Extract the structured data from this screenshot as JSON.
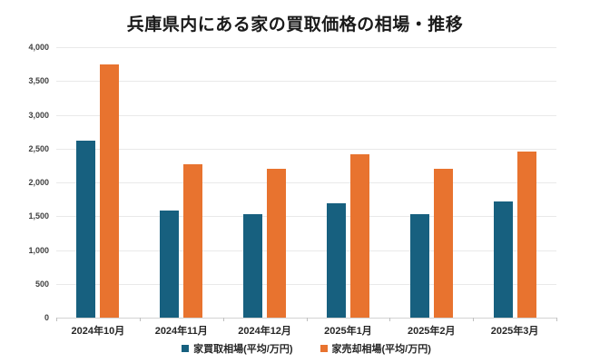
{
  "title": "兵庫県内にある家の買取価格の相場・推移",
  "colors": {
    "series_buy": "#17607F",
    "series_sell": "#E8732F",
    "gridline": "#E9E9E9",
    "axis_line": "#D2D2D2",
    "text": "#262626"
  },
  "chart_data": {
    "type": "bar",
    "title": "兵庫県内にある家の買取価格の相場・推移",
    "categories": [
      "2024年10月",
      "2024年11月",
      "2024年12月",
      "2025年1月",
      "2025年2月",
      "2025年3月"
    ],
    "series": [
      {
        "name": "家買取相場(平均/万円)",
        "color": "#17607F",
        "values": [
          2620,
          1590,
          1530,
          1690,
          1530,
          1720
        ]
      },
      {
        "name": "家売却相場(平均/万円)",
        "color": "#E8732F",
        "values": [
          3750,
          2270,
          2200,
          2410,
          2200,
          2460
        ]
      }
    ],
    "xlabel": "",
    "ylabel": "",
    "ylim": [
      0,
      4000
    ],
    "y_ticks": [
      0,
      500,
      1000,
      1500,
      2000,
      2500,
      3000,
      3500,
      4000
    ],
    "y_tick_labels": [
      "0",
      "500",
      "1,000",
      "1,500",
      "2,000",
      "2,500",
      "3,000",
      "3,500",
      "4,000"
    ],
    "grid": true,
    "legend_position": "bottom"
  }
}
